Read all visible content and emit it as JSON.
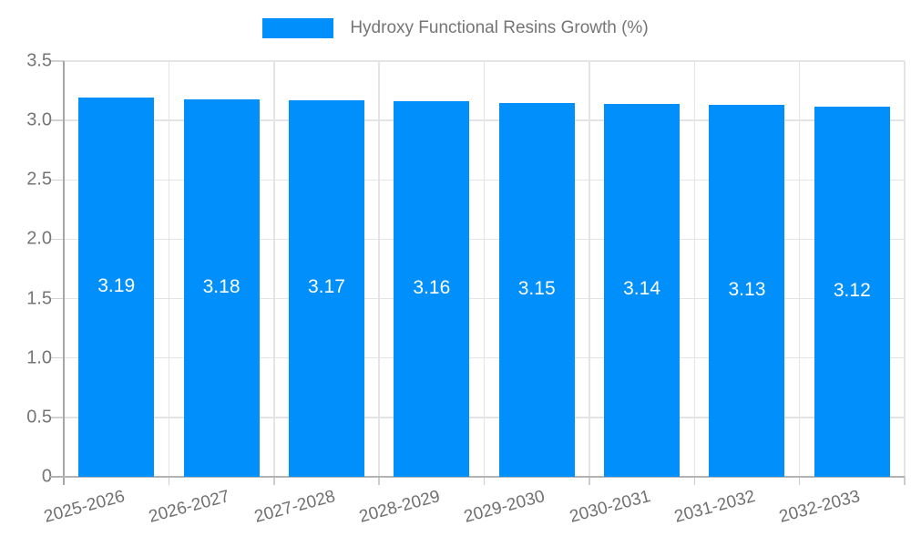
{
  "legend": {
    "label": "Hydroxy Functional Resins Growth (%)",
    "swatch_color": "#008FFB"
  },
  "chart_data": {
    "type": "bar",
    "title": "",
    "xlabel": "",
    "ylabel": "",
    "categories": [
      "2025-2026",
      "2026-2027",
      "2027-2028",
      "2028-2029",
      "2029-2030",
      "2030-2031",
      "2031-2032",
      "2032-2033"
    ],
    "series": [
      {
        "name": "Hydroxy Functional Resins Growth (%)",
        "values": [
          3.19,
          3.18,
          3.17,
          3.16,
          3.15,
          3.14,
          3.13,
          3.12
        ]
      }
    ],
    "bar_value_labels": [
      "3.19",
      "3.18",
      "3.17",
      "3.16",
      "3.15",
      "3.14",
      "3.13",
      "3.12"
    ],
    "ylim": [
      0,
      3.5
    ],
    "yticks": [
      0,
      0.5,
      1.0,
      1.5,
      2.0,
      2.5,
      3.0,
      3.5
    ],
    "ytick_labels": [
      "0",
      "0.5",
      "1.0",
      "1.5",
      "2.0",
      "2.5",
      "3.0",
      "3.5"
    ],
    "grid": true,
    "legend_position": "top-center",
    "colors": {
      "bar": "#008FFB",
      "bar_label": "#FFFFFF",
      "axis_text": "#757575",
      "gridline": "#E4E4E4",
      "axis_line": "#A6A6A6"
    }
  }
}
